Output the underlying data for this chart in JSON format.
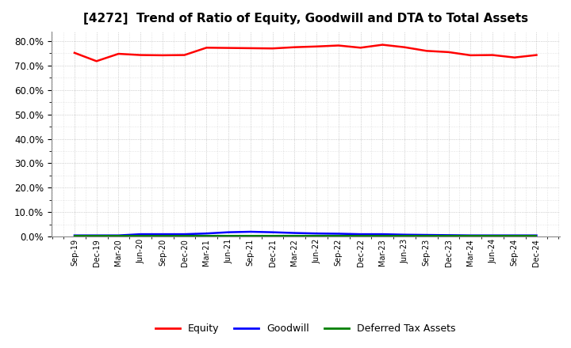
{
  "title": "[4272]  Trend of Ratio of Equity, Goodwill and DTA to Total Assets",
  "x_labels": [
    "Sep-19",
    "Dec-19",
    "Mar-20",
    "Jun-20",
    "Sep-20",
    "Dec-20",
    "Mar-21",
    "Jun-21",
    "Sep-21",
    "Dec-21",
    "Mar-22",
    "Jun-22",
    "Sep-22",
    "Dec-22",
    "Mar-23",
    "Jun-23",
    "Sep-23",
    "Dec-23",
    "Mar-24",
    "Jun-24",
    "Sep-24",
    "Dec-24"
  ],
  "equity": [
    0.752,
    0.718,
    0.748,
    0.743,
    0.742,
    0.743,
    0.773,
    0.772,
    0.771,
    0.77,
    0.775,
    0.778,
    0.782,
    0.773,
    0.785,
    0.775,
    0.76,
    0.755,
    0.742,
    0.743,
    0.733,
    0.743
  ],
  "goodwill": [
    0.005,
    0.005,
    0.005,
    0.01,
    0.01,
    0.01,
    0.013,
    0.018,
    0.02,
    0.018,
    0.015,
    0.013,
    0.012,
    0.01,
    0.01,
    0.008,
    0.007,
    0.006,
    0.005,
    0.005,
    0.005,
    0.005
  ],
  "dta": [
    0.003,
    0.003,
    0.003,
    0.003,
    0.003,
    0.003,
    0.003,
    0.003,
    0.003,
    0.003,
    0.003,
    0.003,
    0.003,
    0.003,
    0.003,
    0.003,
    0.003,
    0.003,
    0.003,
    0.003,
    0.003,
    0.003
  ],
  "equity_color": "#FF0000",
  "goodwill_color": "#0000FF",
  "dta_color": "#008000",
  "ylim": [
    0.0,
    0.84
  ],
  "yticks": [
    0.0,
    0.1,
    0.2,
    0.3,
    0.4,
    0.5,
    0.6,
    0.7,
    0.8
  ],
  "background_color": "#FFFFFF",
  "grid_color": "#999999",
  "title_fontsize": 11,
  "legend_labels": [
    "Equity",
    "Goodwill",
    "Deferred Tax Assets"
  ]
}
